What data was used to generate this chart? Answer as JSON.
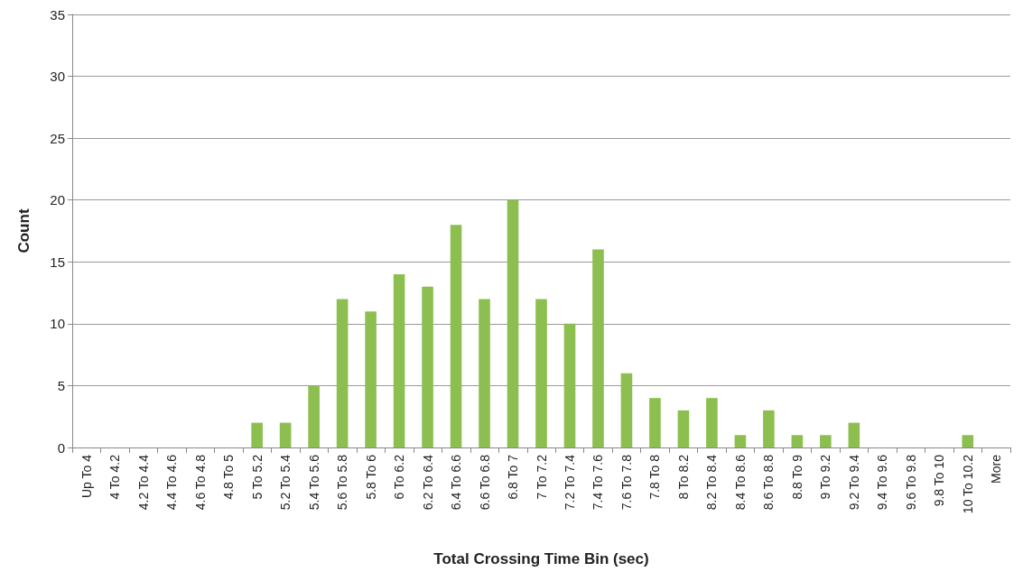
{
  "chart_data": {
    "type": "bar",
    "xlabel": "Total Crossing Time Bin (sec)",
    "ylabel": "Count",
    "categories": [
      "Up To 4",
      "4 To 4.2",
      "4.2 To 4.4",
      "4.4 To 4.6",
      "4.6 To 4.8",
      "4.8 To 5",
      "5 To 5.2",
      "5.2 To 5.4",
      "5.4 To 5.6",
      "5.6 To 5.8",
      "5.8 To 6",
      "6 To 6.2",
      "6.2 To 6.4",
      "6.4 To 6.6",
      "6.6 To 6.8",
      "6.8 To 7",
      "7 To 7.2",
      "7.2 To 7.4",
      "7.4 To 7.6",
      "7.6 To 7.8",
      "7.8 To 8",
      "8 To 8.2",
      "8.2 To 8.4",
      "8.4 To 8.6",
      "8.6 To 8.8",
      "8.8 To 9",
      "9 To 9.2",
      "9.2 To 9.4",
      "9.4 To 9.6",
      "9.6 To 9.8",
      "9.8 To 10",
      "10 To 10.2",
      "More"
    ],
    "values": [
      0,
      0,
      0,
      0,
      0,
      0,
      2,
      2,
      5,
      12,
      11,
      14,
      13,
      18,
      12,
      20,
      12,
      10,
      16,
      6,
      4,
      3,
      4,
      1,
      3,
      1,
      1,
      2,
      0,
      0,
      0,
      1,
      0
    ],
    "color": "#8cbf4f",
    "ylim": [
      0,
      35
    ],
    "yticks": [
      0,
      5,
      10,
      15,
      20,
      25,
      30,
      35
    ],
    "grid": "y"
  }
}
